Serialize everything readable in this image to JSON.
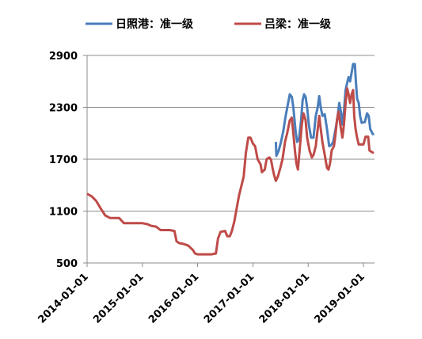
{
  "chart_data": {
    "type": "line",
    "title": "",
    "xlabel": "",
    "ylabel": "",
    "x_range": [
      "2014-01-01",
      "2019-03-15"
    ],
    "ylim": [
      500,
      2900
    ],
    "y_ticks": [
      500,
      1100,
      1700,
      2300,
      2900
    ],
    "y_tick_labels": [
      "500",
      "1100",
      "1700",
      "2300",
      "2900"
    ],
    "x_ticks": [
      "2014-01-01",
      "2015-01-01",
      "2016-01-01",
      "2017-01-01",
      "2018-01-01",
      "2019-01-01"
    ],
    "x_tick_labels": [
      "2014-01-01",
      "2015-01-01",
      "2016-01-01",
      "2017-01-01",
      "2018-01-01",
      "2019-01-01"
    ],
    "grid": "horizontal",
    "legend_position": "top",
    "series": [
      {
        "name": "日照港：准一级",
        "color": "#4a7ebb",
        "points": [
          [
            "2017-06-01",
            1900
          ],
          [
            "2017-06-05",
            1740
          ],
          [
            "2017-06-20",
            1800
          ],
          [
            "2017-07-05",
            1900
          ],
          [
            "2017-07-20",
            2020
          ],
          [
            "2017-08-05",
            2200
          ],
          [
            "2017-08-20",
            2340
          ],
          [
            "2017-09-01",
            2450
          ],
          [
            "2017-09-15",
            2420
          ],
          [
            "2017-09-25",
            2300
          ],
          [
            "2017-10-10",
            2020
          ],
          [
            "2017-10-20",
            1900
          ],
          [
            "2017-11-01",
            1930
          ],
          [
            "2017-11-15",
            2150
          ],
          [
            "2017-11-25",
            2380
          ],
          [
            "2017-12-05",
            2450
          ],
          [
            "2017-12-15",
            2420
          ],
          [
            "2017-12-25",
            2300
          ],
          [
            "2018-01-05",
            2100
          ],
          [
            "2018-01-20",
            1950
          ],
          [
            "2018-02-05",
            1950
          ],
          [
            "2018-02-20",
            2200
          ],
          [
            "2018-03-05",
            2300
          ],
          [
            "2018-03-15",
            2430
          ],
          [
            "2018-03-25",
            2300
          ],
          [
            "2018-04-05",
            2200
          ],
          [
            "2018-04-20",
            2220
          ],
          [
            "2018-05-05",
            2050
          ],
          [
            "2018-05-20",
            1850
          ],
          [
            "2018-06-01",
            1860
          ],
          [
            "2018-06-15",
            1900
          ],
          [
            "2018-07-01",
            2050
          ],
          [
            "2018-07-15",
            2200
          ],
          [
            "2018-07-25",
            2350
          ],
          [
            "2018-08-05",
            2250
          ],
          [
            "2018-08-15",
            2100
          ],
          [
            "2018-08-25",
            2250
          ],
          [
            "2018-09-05",
            2500
          ],
          [
            "2018-09-15",
            2580
          ],
          [
            "2018-09-25",
            2650
          ],
          [
            "2018-10-05",
            2600
          ],
          [
            "2018-10-15",
            2700
          ],
          [
            "2018-10-25",
            2800
          ],
          [
            "2018-11-05",
            2800
          ],
          [
            "2018-11-12",
            2600
          ],
          [
            "2018-11-20",
            2400
          ],
          [
            "2018-12-01",
            2350
          ],
          [
            "2018-12-10",
            2200
          ],
          [
            "2018-12-20",
            2120
          ],
          [
            "2019-01-10",
            2130
          ],
          [
            "2019-01-25",
            2230
          ],
          [
            "2019-02-05",
            2200
          ],
          [
            "2019-02-15",
            2050
          ],
          [
            "2019-03-01",
            2000
          ],
          [
            "2019-03-10",
            1980
          ]
        ]
      },
      {
        "name": "吕梁：准一级",
        "color": "#be4b48",
        "points": [
          [
            "2014-01-01",
            1300
          ],
          [
            "2014-02-01",
            1270
          ],
          [
            "2014-03-01",
            1220
          ],
          [
            "2014-04-01",
            1130
          ],
          [
            "2014-05-01",
            1050
          ],
          [
            "2014-06-01",
            1020
          ],
          [
            "2014-07-01",
            1020
          ],
          [
            "2014-08-01",
            1020
          ],
          [
            "2014-09-01",
            960
          ],
          [
            "2014-10-01",
            960
          ],
          [
            "2014-11-01",
            960
          ],
          [
            "2014-12-01",
            960
          ],
          [
            "2015-01-01",
            960
          ],
          [
            "2015-02-01",
            950
          ],
          [
            "2015-03-01",
            930
          ],
          [
            "2015-04-01",
            920
          ],
          [
            "2015-05-01",
            880
          ],
          [
            "2015-06-01",
            880
          ],
          [
            "2015-07-01",
            880
          ],
          [
            "2015-08-01",
            870
          ],
          [
            "2015-08-15",
            750
          ],
          [
            "2015-09-01",
            730
          ],
          [
            "2015-10-01",
            720
          ],
          [
            "2015-11-01",
            700
          ],
          [
            "2015-12-01",
            650
          ],
          [
            "2015-12-15",
            610
          ],
          [
            "2016-01-01",
            600
          ],
          [
            "2016-02-01",
            600
          ],
          [
            "2016-03-01",
            600
          ],
          [
            "2016-04-01",
            600
          ],
          [
            "2016-05-01",
            610
          ],
          [
            "2016-05-15",
            780
          ],
          [
            "2016-06-01",
            860
          ],
          [
            "2016-07-01",
            870
          ],
          [
            "2016-07-15",
            810
          ],
          [
            "2016-08-01",
            810
          ],
          [
            "2016-08-15",
            870
          ],
          [
            "2016-09-01",
            990
          ],
          [
            "2016-09-15",
            1130
          ],
          [
            "2016-10-01",
            1280
          ],
          [
            "2016-10-15",
            1380
          ],
          [
            "2016-11-01",
            1500
          ],
          [
            "2016-11-15",
            1770
          ],
          [
            "2016-12-01",
            1950
          ],
          [
            "2016-12-15",
            1950
          ],
          [
            "2017-01-01",
            1880
          ],
          [
            "2017-01-15",
            1850
          ],
          [
            "2017-02-01",
            1700
          ],
          [
            "2017-02-20",
            1640
          ],
          [
            "2017-03-01",
            1550
          ],
          [
            "2017-03-20",
            1580
          ],
          [
            "2017-04-01",
            1700
          ],
          [
            "2017-04-20",
            1720
          ],
          [
            "2017-05-01",
            1690
          ],
          [
            "2017-05-10",
            1600
          ],
          [
            "2017-05-20",
            1520
          ],
          [
            "2017-06-01",
            1450
          ],
          [
            "2017-06-15",
            1500
          ],
          [
            "2017-07-01",
            1600
          ],
          [
            "2017-07-15",
            1700
          ],
          [
            "2017-08-01",
            1900
          ],
          [
            "2017-08-15",
            2000
          ],
          [
            "2017-09-01",
            2150
          ],
          [
            "2017-09-15",
            2180
          ],
          [
            "2017-09-25",
            2000
          ],
          [
            "2017-10-05",
            1800
          ],
          [
            "2017-10-15",
            1650
          ],
          [
            "2017-10-25",
            1580
          ],
          [
            "2017-11-05",
            1800
          ],
          [
            "2017-11-20",
            2100
          ],
          [
            "2017-12-01",
            2230
          ],
          [
            "2017-12-15",
            2150
          ],
          [
            "2017-12-25",
            1950
          ],
          [
            "2018-01-10",
            1800
          ],
          [
            "2018-01-25",
            1720
          ],
          [
            "2018-02-05",
            1750
          ],
          [
            "2018-02-20",
            1850
          ],
          [
            "2018-03-05",
            2050
          ],
          [
            "2018-03-15",
            2200
          ],
          [
            "2018-03-25",
            2050
          ],
          [
            "2018-04-05",
            1900
          ],
          [
            "2018-04-15",
            1800
          ],
          [
            "2018-04-25",
            1700
          ],
          [
            "2018-05-05",
            1600
          ],
          [
            "2018-05-15",
            1580
          ],
          [
            "2018-05-25",
            1650
          ],
          [
            "2018-06-05",
            1800
          ],
          [
            "2018-06-20",
            1850
          ],
          [
            "2018-07-01",
            2000
          ],
          [
            "2018-07-10",
            2150
          ],
          [
            "2018-07-20",
            2250
          ],
          [
            "2018-08-01",
            2100
          ],
          [
            "2018-08-15",
            1950
          ],
          [
            "2018-08-25",
            2100
          ],
          [
            "2018-09-05",
            2350
          ],
          [
            "2018-09-15",
            2520
          ],
          [
            "2018-09-25",
            2450
          ],
          [
            "2018-10-05",
            2350
          ],
          [
            "2018-10-15",
            2450
          ],
          [
            "2018-10-25",
            2500
          ],
          [
            "2018-11-01",
            2200
          ],
          [
            "2018-11-10",
            2050
          ],
          [
            "2018-11-20",
            1950
          ],
          [
            "2018-12-01",
            1870
          ],
          [
            "2018-12-15",
            1870
          ],
          [
            "2019-01-01",
            1870
          ],
          [
            "2019-01-15",
            1960
          ],
          [
            "2019-02-01",
            1960
          ],
          [
            "2019-02-10",
            1800
          ],
          [
            "2019-03-01",
            1780
          ],
          [
            "2019-03-10",
            1770
          ]
        ]
      }
    ]
  }
}
